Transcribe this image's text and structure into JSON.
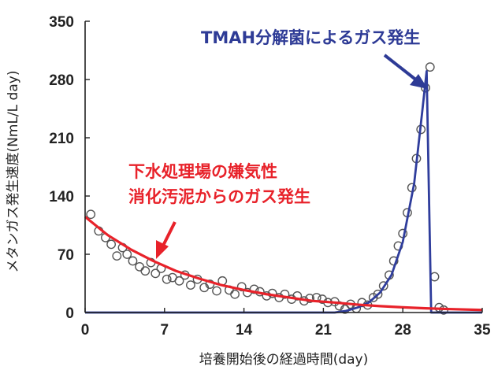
{
  "colors": {
    "measured_marker": "#555555",
    "blue_series": "#2f3d9c",
    "red_series": "#e8222a",
    "axis": "#222222"
  },
  "chart_data": {
    "type": "scatter",
    "title": "",
    "xlabel": "培養開始後の経過時間(day)",
    "ylabel": "メタンガス発生速度(NmL/L day)",
    "xlim": [
      0,
      35
    ],
    "ylim": [
      0,
      350
    ],
    "xticks": [
      0,
      7,
      14,
      21,
      28,
      35
    ],
    "yticks": [
      0,
      70,
      140,
      210,
      280,
      350
    ],
    "grid": false,
    "annotations": [
      {
        "text": "TMAH分解菌によるガス発生",
        "color": "#2e3b96",
        "points_to": [
          29.8,
          280
        ]
      },
      {
        "lines": [
          "下水処理場の嫌気性",
          "消化汚泥からのガス発生"
        ],
        "color": "#e8222a",
        "points_to": [
          6.5,
          58
        ]
      }
    ],
    "measured_points": {
      "x": [
        0.5,
        1.2,
        1.8,
        2.3,
        2.8,
        3.3,
        3.7,
        4.2,
        4.8,
        5.3,
        5.8,
        6.2,
        6.7,
        7.2,
        7.7,
        8.3,
        8.8,
        9.3,
        9.9,
        10.5,
        11,
        11.6,
        12.1,
        12.7,
        13.2,
        13.8,
        14.3,
        14.9,
        15.4,
        16,
        16.5,
        17.1,
        17.6,
        18.2,
        18.7,
        19.3,
        19.8,
        20.4,
        20.9,
        21.4,
        22,
        22.4,
        22.9,
        23.4,
        23.9,
        24.4,
        24.9,
        25.4,
        25.8,
        26.3,
        26.8,
        27.2,
        27.6,
        28,
        28.4,
        28.8,
        29.2,
        29.6,
        30,
        30.4,
        30.8,
        31.2,
        31.6
      ],
      "y": [
        118,
        98,
        90,
        82,
        68,
        78,
        70,
        62,
        55,
        50,
        60,
        47,
        53,
        40,
        42,
        38,
        45,
        33,
        40,
        30,
        34,
        26,
        38,
        27,
        22,
        31,
        24,
        28,
        25,
        20,
        23,
        18,
        22,
        16,
        20,
        14,
        17,
        18,
        16,
        12,
        13,
        8,
        4,
        10,
        5,
        12,
        9,
        18,
        22,
        32,
        45,
        62,
        80,
        95,
        120,
        150,
        185,
        220,
        270,
        295,
        43,
        6,
        3
      ]
    },
    "series": [
      {
        "name": "TMAH分解菌によるガス発生",
        "color": "#2f3d9c",
        "x": [
          0,
          22,
          23,
          24,
          25,
          26,
          27,
          28,
          29,
          29.7,
          30.1,
          30.5,
          35
        ],
        "y": [
          0,
          0,
          2,
          6,
          12,
          24,
          45,
          85,
          155,
          240,
          290,
          0,
          0
        ]
      },
      {
        "name": "下水処理場の嫌気性消化汚泥からのガス発生",
        "color": "#e8222a",
        "x": [
          0,
          2,
          4,
          6,
          8,
          10,
          12,
          14,
          16,
          18,
          20,
          22,
          24,
          26,
          28,
          30,
          32,
          35
        ],
        "y": [
          115,
          93,
          76,
          62,
          50,
          41,
          33,
          27,
          22,
          18,
          14,
          12,
          9.5,
          7.7,
          6.3,
          5.1,
          4.2,
          3.1
        ]
      }
    ]
  }
}
